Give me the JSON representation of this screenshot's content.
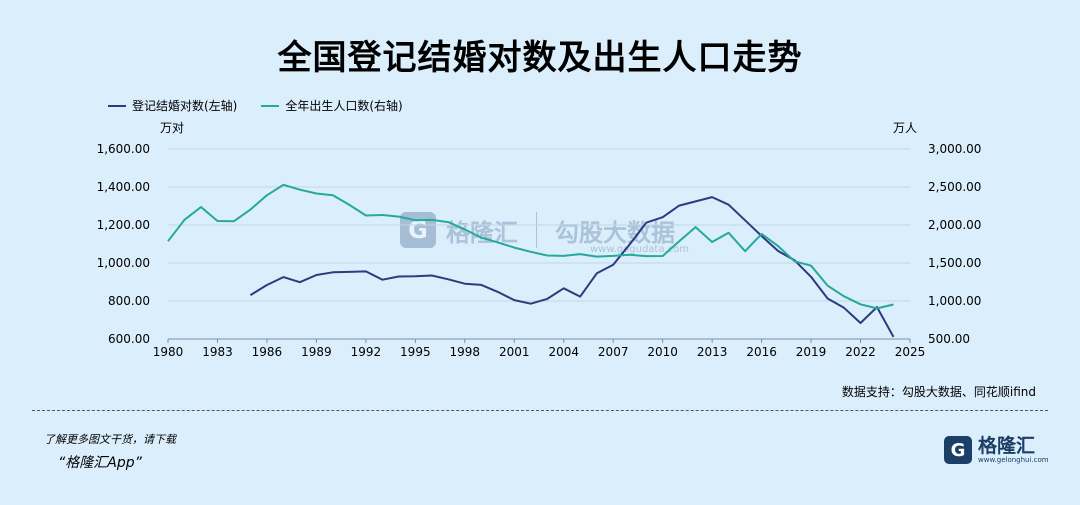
{
  "title": "全国登记结婚对数及出生人口走势",
  "legend": {
    "marriages": "登记结婚对数(左轴)",
    "births": "全年出生人口数(右轴)"
  },
  "units": {
    "left": "万对",
    "right": "万人"
  },
  "source": "数据支持：勾股大数据、同花顺ifind",
  "footer": {
    "note": "了解更多图文干货，请下载",
    "app": "“格隆汇App”"
  },
  "watermark": {
    "mark": "G",
    "name": "格隆汇",
    "brand": "勾股大数据",
    "url": "www.gogudata.com"
  },
  "logo": {
    "mark": "G",
    "name": "格隆汇",
    "url": "www.gelonghui.com"
  },
  "colors": {
    "marriages": "#2e3a7e",
    "births": "#24a99b",
    "grid": "#c2d5e6"
  },
  "chart_data": {
    "type": "line",
    "title": "全国登记结婚对数及出生人口走势",
    "xlim": [
      1980,
      2025
    ],
    "x_ticks": [
      "1980",
      "1983",
      "1986",
      "1989",
      "1992",
      "1995",
      "1998",
      "2001",
      "2004",
      "2007",
      "2010",
      "2013",
      "2016",
      "2019",
      "2022",
      "2025"
    ],
    "y_left": {
      "label": "万对",
      "ylim": [
        600,
        1600
      ],
      "ticks": [
        "600.00",
        "800.00",
        "1,000.00",
        "1,200.00",
        "1,400.00",
        "1,600.00"
      ]
    },
    "y_right": {
      "label": "万人",
      "ylim": [
        500,
        3000
      ],
      "ticks": [
        "500.00",
        "1,000.00",
        "1,500.00",
        "2,000.00",
        "2,500.00",
        "3,000.00"
      ]
    },
    "grid": true,
    "legend_position": "top-left",
    "series": [
      {
        "name": "登记结婚对数(左轴)",
        "axis": "left",
        "x": [
          1985,
          1986,
          1987,
          1988,
          1989,
          1990,
          1991,
          1992,
          1993,
          1994,
          1995,
          1996,
          1997,
          1998,
          1999,
          2000,
          2001,
          2002,
          2003,
          2004,
          2005,
          2006,
          2007,
          2008,
          2009,
          2010,
          2011,
          2012,
          2013,
          2014,
          2015,
          2016,
          2017,
          2018,
          2019,
          2020,
          2021,
          2022,
          2023,
          2024
        ],
        "y": [
          831,
          884,
          926,
          899,
          937,
          951,
          953,
          956,
          912,
          929,
          930,
          934,
          914,
          891,
          885,
          848,
          805,
          786,
          811,
          867,
          823,
          945,
          991,
          1098,
          1212,
          1241,
          1302,
          1324,
          1347,
          1307,
          1225,
          1142,
          1063,
          1014,
          927,
          813,
          764,
          684,
          768,
          611
        ]
      },
      {
        "name": "全年出生人口数(右轴)",
        "axis": "right",
        "x": [
          1980,
          1981,
          1982,
          1983,
          1984,
          1985,
          1986,
          1987,
          1988,
          1989,
          1990,
          1991,
          1992,
          1993,
          1994,
          1995,
          1996,
          1997,
          1998,
          1999,
          2000,
          2001,
          2002,
          2003,
          2004,
          2005,
          2006,
          2007,
          2008,
          2009,
          2010,
          2011,
          2012,
          2013,
          2014,
          2015,
          2016,
          2017,
          2018,
          2019,
          2020,
          2021,
          2022,
          2023,
          2024
        ],
        "y": [
          1787,
          2069,
          2237,
          2052,
          2050,
          2202,
          2391,
          2529,
          2464,
          2414,
          2391,
          2265,
          2125,
          2132,
          2110,
          2063,
          2067,
          2038,
          1942,
          1834,
          1771,
          1702,
          1647,
          1599,
          1593,
          1617,
          1584,
          1594,
          1608,
          1591,
          1592,
          1786,
          1973,
          1776,
          1897,
          1655,
          1883,
          1723,
          1523,
          1465,
          1202,
          1062,
          956,
          902,
          954
        ]
      }
    ]
  }
}
